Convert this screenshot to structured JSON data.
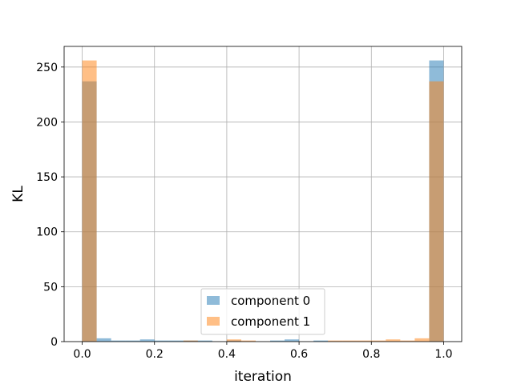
{
  "chart_data": {
    "type": "bar",
    "title": "",
    "xlabel": "iteration",
    "ylabel": "KL",
    "xlim": [
      -0.05,
      1.05
    ],
    "ylim": [
      0,
      268.8
    ],
    "xticks": [
      0.0,
      0.2,
      0.4,
      0.6,
      0.8,
      1.0
    ],
    "yticks": [
      0,
      50,
      100,
      150,
      200,
      250
    ],
    "xtick_labels": [
      "0.0",
      "0.2",
      "0.4",
      "0.6",
      "0.8",
      "1.0"
    ],
    "ytick_labels": [
      "0",
      "50",
      "100",
      "150",
      "200",
      "250"
    ],
    "grid": true,
    "legend_position": "lower-center",
    "bin_edges": [
      0.0,
      0.04,
      0.08,
      0.12,
      0.16,
      0.2,
      0.24,
      0.28,
      0.32,
      0.36,
      0.4,
      0.44,
      0.48,
      0.52,
      0.56,
      0.6,
      0.64,
      0.68,
      0.72,
      0.76,
      0.8,
      0.84,
      0.88,
      0.92,
      0.96,
      1.0
    ],
    "series": [
      {
        "name": "component 0",
        "color": "#1f77b4",
        "values": [
          237,
          3,
          1,
          1,
          2,
          1,
          1,
          1,
          1,
          0,
          1,
          0,
          0,
          1,
          2,
          0,
          1,
          0,
          0,
          0,
          0,
          0,
          0,
          0,
          256
        ]
      },
      {
        "name": "component 1",
        "color": "#ff7f0e",
        "values": [
          256,
          0,
          0,
          0,
          0,
          0,
          0,
          1,
          0,
          0,
          2,
          1,
          0,
          0,
          0,
          0,
          0,
          1,
          1,
          1,
          1,
          2,
          1,
          3,
          237
        ]
      }
    ]
  }
}
